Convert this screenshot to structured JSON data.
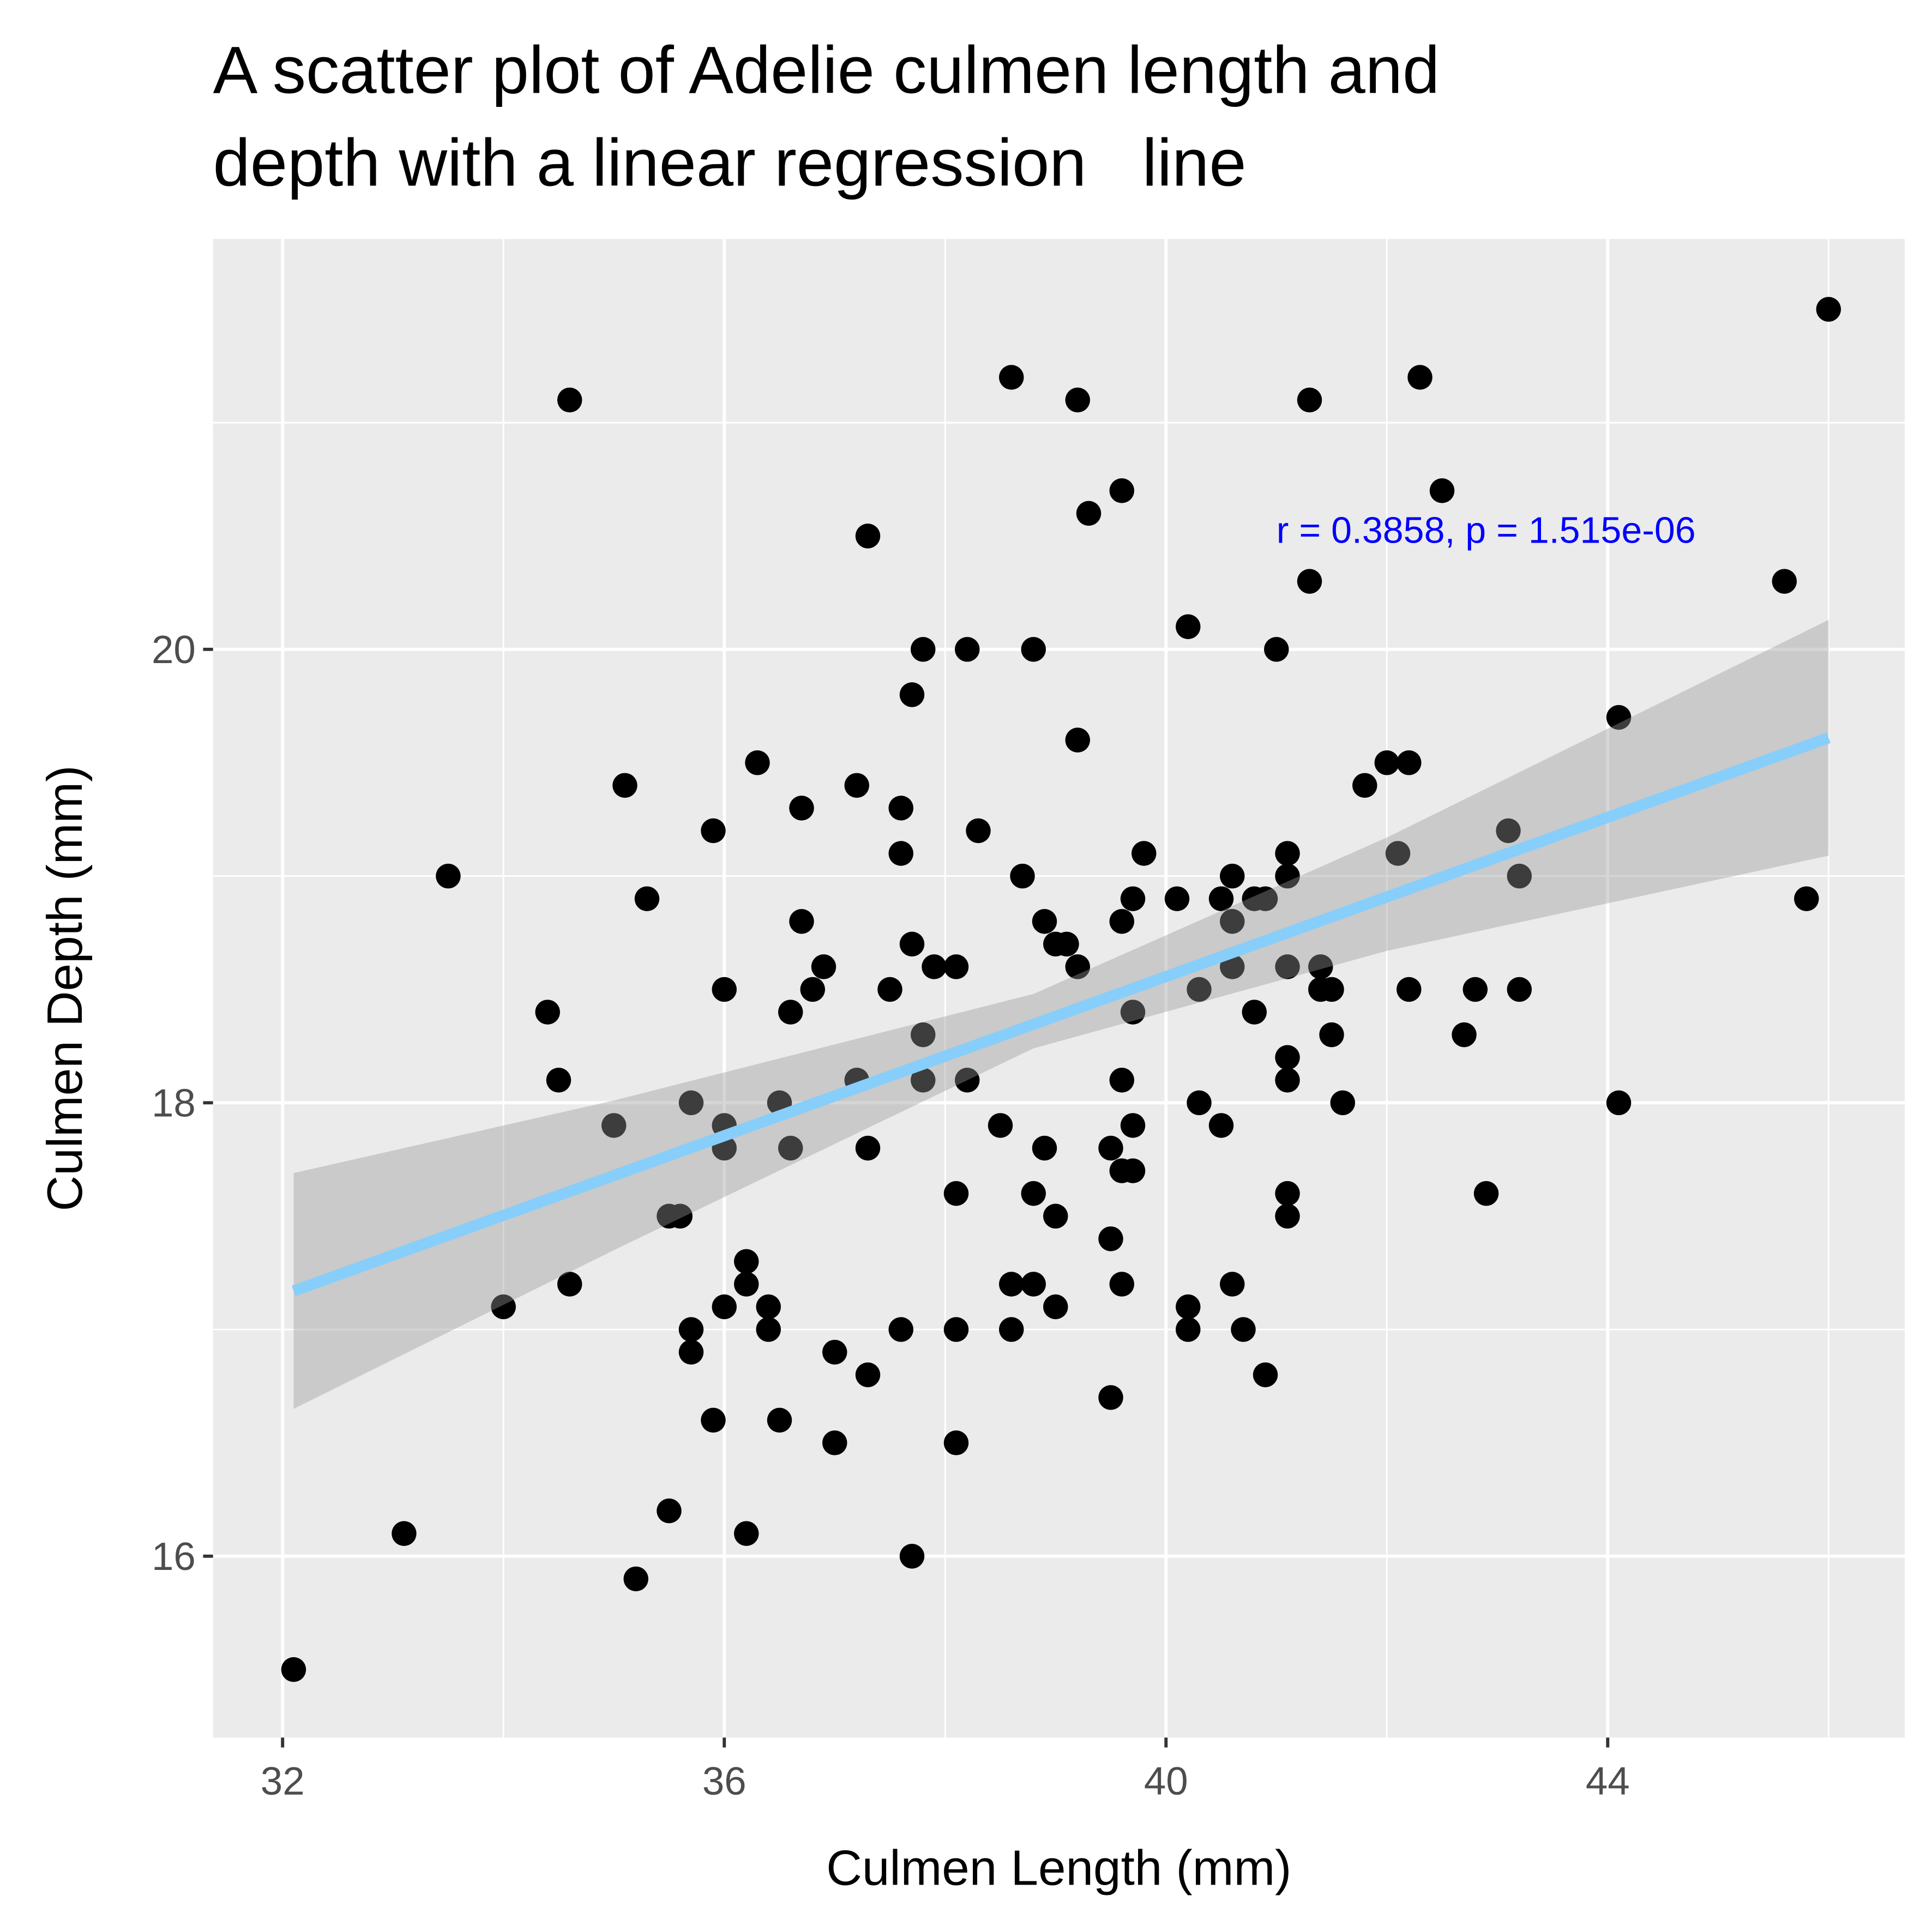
{
  "chart_data": {
    "type": "scatter",
    "title": [
      "A scatter plot of Adelie culmen length and",
      "depth with a linear regression   line"
    ],
    "x_label": "Culmen Length (mm)",
    "y_label": "Culmen Depth (mm)",
    "xlim": [
      31.37,
      46.69
    ],
    "ylim": [
      15.2,
      21.81
    ],
    "xticks": [
      32,
      36,
      40,
      44
    ],
    "yticks": [
      16,
      18,
      20
    ],
    "minor_xticks": [
      34,
      38,
      42,
      46
    ],
    "minor_yticks": [
      17,
      19,
      21
    ],
    "grid": true,
    "color": "#000000",
    "x": [
      32.1,
      33.1,
      33.5,
      34.0,
      34.4,
      34.5,
      34.6,
      34.6,
      35.0,
      35.1,
      35.2,
      35.3,
      35.5,
      35.5,
      35.6,
      35.7,
      35.7,
      35.7,
      35.9,
      35.9,
      36.0,
      36.0,
      36.0,
      36.0,
      36.2,
      36.2,
      36.2,
      36.3,
      36.4,
      36.4,
      36.5,
      36.5,
      36.6,
      36.6,
      36.7,
      36.7,
      36.8,
      36.9,
      37.0,
      37.0,
      37.2,
      37.2,
      37.3,
      37.3,
      37.3,
      37.5,
      37.6,
      37.6,
      37.6,
      37.7,
      37.7,
      37.7,
      37.8,
      37.8,
      37.8,
      37.9,
      38.1,
      38.1,
      38.1,
      38.1,
      38.2,
      38.2,
      38.3,
      38.5,
      38.6,
      38.6,
      38.6,
      38.7,
      38.8,
      38.8,
      38.8,
      38.9,
      38.9,
      39.0,
      39.0,
      39.0,
      39.1,
      39.2,
      39.2,
      39.2,
      39.3,
      39.5,
      39.5,
      39.5,
      39.6,
      39.6,
      39.6,
      39.6,
      39.6,
      39.7,
      39.7,
      39.7,
      39.7,
      39.8,
      40.1,
      40.2,
      40.2,
      40.2,
      40.3,
      40.3,
      40.5,
      40.5,
      40.6,
      40.6,
      40.6,
      40.6,
      40.7,
      40.8,
      40.8,
      40.9,
      40.9,
      41.0,
      41.1,
      41.1,
      41.1,
      41.1,
      41.1,
      41.1,
      41.1,
      41.3,
      41.3,
      41.4,
      41.4,
      41.5,
      41.5,
      41.6,
      41.8,
      42.0,
      42.1,
      42.2,
      42.2,
      42.3,
      42.5,
      42.7,
      42.8,
      42.9,
      43.1,
      43.2,
      43.2,
      44.1,
      44.1,
      45.6,
      45.8,
      46.0
    ],
    "values": [
      15.5,
      16.1,
      19.0,
      17.1,
      18.4,
      18.1,
      21.1,
      17.2,
      17.9,
      19.4,
      15.9,
      18.9,
      16.2,
      17.5,
      17.5,
      18.0,
      17.0,
      16.9,
      19.2,
      16.6,
      18.5,
      17.9,
      17.8,
      17.1,
      17.3,
      17.2,
      16.1,
      19.5,
      17.1,
      17.0,
      18.0,
      16.6,
      18.4,
      17.8,
      19.3,
      18.8,
      18.5,
      18.6,
      16.9,
      16.5,
      19.4,
      18.1,
      20.5,
      17.8,
      16.8,
      18.5,
      19.3,
      19.1,
      17.0,
      19.8,
      18.7,
      16.0,
      20.0,
      18.3,
      18.1,
      18.6,
      18.6,
      17.6,
      17.0,
      16.5,
      20.0,
      18.1,
      19.2,
      17.9,
      21.2,
      17.2,
      17.0,
      19.0,
      20.0,
      17.6,
      17.2,
      18.8,
      17.8,
      18.7,
      17.5,
      17.1,
      18.7,
      21.1,
      19.6,
      18.6,
      20.6,
      17.8,
      17.4,
      16.7,
      20.7,
      18.8,
      18.1,
      17.7,
      17.2,
      18.9,
      18.4,
      17.9,
      17.7,
      19.1,
      18.9,
      20.1,
      17.1,
      17.0,
      18.5,
      18.0,
      18.9,
      17.9,
      19.0,
      18.8,
      18.6,
      17.2,
      17.0,
      18.9,
      18.4,
      18.9,
      16.8,
      20.0,
      19.1,
      19.0,
      18.6,
      18.2,
      18.1,
      17.6,
      17.5,
      21.1,
      20.3,
      18.6,
      18.5,
      18.5,
      18.3,
      18.0,
      19.4,
      19.5,
      19.1,
      19.5,
      18.5,
      21.2,
      20.7,
      18.3,
      18.5,
      17.6,
      19.2,
      19.0,
      18.5,
      19.7,
      18.0,
      20.3,
      18.9,
      21.5
    ],
    "regression": {
      "color": "#87cefa",
      "x": [
        32.1,
        46.0
      ],
      "values": [
        17.17,
        19.61
      ]
    },
    "band": {
      "color": "#999999",
      "x": [
        32.1,
        35.0,
        38.8,
        42.0,
        46.0
      ],
      "upper": [
        17.69,
        18.01,
        18.48,
        19.17,
        20.13
      ],
      "lower": [
        16.65,
        17.35,
        18.24,
        18.67,
        19.09
      ]
    },
    "annotation": {
      "text": "r = 0.3858, p = 1.515e-06",
      "color": "#0000ff",
      "x": 41.0,
      "y": 20.53
    }
  }
}
